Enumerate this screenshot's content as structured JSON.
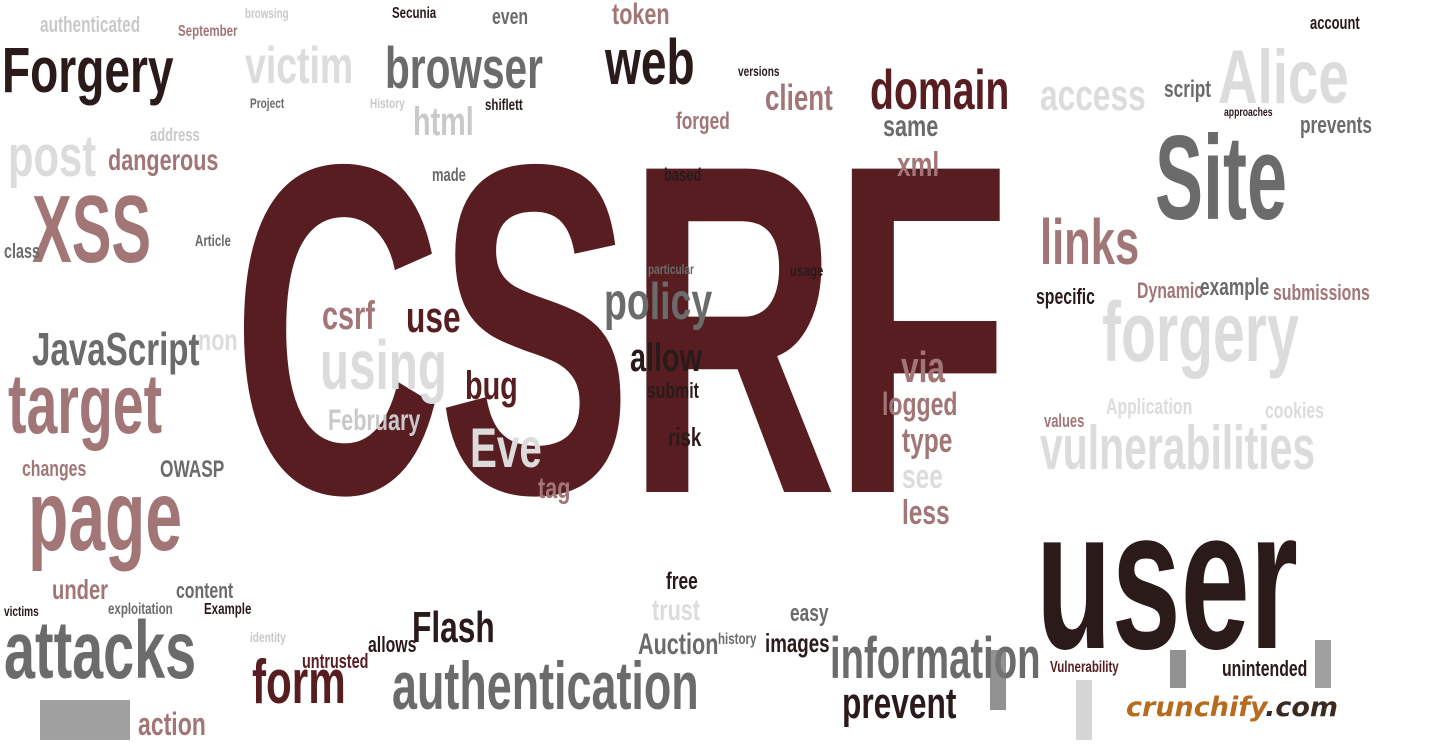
{
  "colors": {
    "maroon": "#581d20",
    "dark": "#2a1a1a",
    "gray": "#6b6b6b",
    "light": "#c9c9c9",
    "pale": "#dcdcdc",
    "rose": "#a27677",
    "brand_orange": "#b86a1d",
    "brand_dark": "#4a2a1a"
  },
  "words": [
    {
      "text": "CSRF",
      "color": "maroon",
      "weight": "bold"
    },
    {
      "text": "Forgery",
      "color": "dark"
    },
    {
      "text": "victim",
      "color": "pale"
    },
    {
      "text": "browser",
      "color": "gray"
    },
    {
      "text": "web",
      "color": "dark"
    },
    {
      "text": "authenticated",
      "color": "light"
    },
    {
      "text": "September",
      "color": "rose"
    },
    {
      "text": "browsing",
      "color": "light"
    },
    {
      "text": "Secunia",
      "color": "dark"
    },
    {
      "text": "even",
      "color": "gray"
    },
    {
      "text": "token",
      "color": "rose"
    },
    {
      "text": "account",
      "color": "dark"
    },
    {
      "text": "Alice",
      "color": "pale"
    },
    {
      "text": "versions",
      "color": "dark"
    },
    {
      "text": "client",
      "color": "rose"
    },
    {
      "text": "domain",
      "color": "maroon"
    },
    {
      "text": "access",
      "color": "pale"
    },
    {
      "text": "script",
      "color": "gray"
    },
    {
      "text": "Project",
      "color": "gray"
    },
    {
      "text": "History",
      "color": "light"
    },
    {
      "text": "html",
      "color": "light"
    },
    {
      "text": "shiflett",
      "color": "dark"
    },
    {
      "text": "forged",
      "color": "rose"
    },
    {
      "text": "same",
      "color": "gray"
    },
    {
      "text": "approaches",
      "color": "dark"
    },
    {
      "text": "prevents",
      "color": "gray"
    },
    {
      "text": "Site",
      "color": "gray"
    },
    {
      "text": "post",
      "color": "pale"
    },
    {
      "text": "address",
      "color": "light"
    },
    {
      "text": "dangerous",
      "color": "rose"
    },
    {
      "text": "xml",
      "color": "rose"
    },
    {
      "text": "made",
      "color": "gray"
    },
    {
      "text": "based",
      "color": "dark"
    },
    {
      "text": "XSS",
      "color": "rose"
    },
    {
      "text": "class",
      "color": "gray"
    },
    {
      "text": "Article",
      "color": "gray"
    },
    {
      "text": "links",
      "color": "rose"
    },
    {
      "text": "particular",
      "color": "gray"
    },
    {
      "text": "usage",
      "color": "dark"
    },
    {
      "text": "specific",
      "color": "dark"
    },
    {
      "text": "Dynamic",
      "color": "rose"
    },
    {
      "text": "example",
      "color": "gray"
    },
    {
      "text": "submissions",
      "color": "rose"
    },
    {
      "text": "policy",
      "color": "gray"
    },
    {
      "text": "csrf",
      "color": "rose"
    },
    {
      "text": "use",
      "color": "maroon"
    },
    {
      "text": "JavaScript",
      "color": "gray"
    },
    {
      "text": "non",
      "color": "pale"
    },
    {
      "text": "forgery",
      "color": "pale"
    },
    {
      "text": "using",
      "color": "pale"
    },
    {
      "text": "allow",
      "color": "dark"
    },
    {
      "text": "target",
      "color": "rose"
    },
    {
      "text": "bug",
      "color": "maroon"
    },
    {
      "text": "submit",
      "color": "dark"
    },
    {
      "text": "via",
      "color": "rose"
    },
    {
      "text": "logged",
      "color": "rose"
    },
    {
      "text": "Application",
      "color": "pale"
    },
    {
      "text": "cookies",
      "color": "pale"
    },
    {
      "text": "February",
      "color": "light"
    },
    {
      "text": "values",
      "color": "rose"
    },
    {
      "text": "Eve",
      "color": "pale"
    },
    {
      "text": "risk",
      "color": "dark"
    },
    {
      "text": "type",
      "color": "rose"
    },
    {
      "text": "vulnerabilities",
      "color": "pale"
    },
    {
      "text": "changes",
      "color": "rose"
    },
    {
      "text": "OWASP",
      "color": "gray"
    },
    {
      "text": "see",
      "color": "pale"
    },
    {
      "text": "page",
      "color": "rose"
    },
    {
      "text": "tag",
      "color": "rose"
    },
    {
      "text": "less",
      "color": "rose"
    },
    {
      "text": "user",
      "color": "dark"
    },
    {
      "text": "under",
      "color": "rose"
    },
    {
      "text": "content",
      "color": "gray"
    },
    {
      "text": "free",
      "color": "dark"
    },
    {
      "text": "victims",
      "color": "dark"
    },
    {
      "text": "exploitation",
      "color": "gray"
    },
    {
      "text": "Example",
      "color": "dark"
    },
    {
      "text": "trust",
      "color": "pale"
    },
    {
      "text": "easy",
      "color": "gray"
    },
    {
      "text": "attacks",
      "color": "gray"
    },
    {
      "text": "identity",
      "color": "light"
    },
    {
      "text": "allows",
      "color": "dark"
    },
    {
      "text": "Flash",
      "color": "dark"
    },
    {
      "text": "Auction",
      "color": "gray"
    },
    {
      "text": "history",
      "color": "gray"
    },
    {
      "text": "images",
      "color": "dark"
    },
    {
      "text": "information",
      "color": "gray"
    },
    {
      "text": "Vulnerability",
      "color": "maroon"
    },
    {
      "text": "unintended",
      "color": "dark"
    },
    {
      "text": "untrusted",
      "color": "maroon"
    },
    {
      "text": "form",
      "color": "maroon"
    },
    {
      "text": "authentication",
      "color": "gray"
    },
    {
      "text": "prevent",
      "color": "dark"
    },
    {
      "text": "action",
      "color": "rose"
    }
  ],
  "brand": {
    "part1": "crunchify",
    "part2": ".com"
  }
}
